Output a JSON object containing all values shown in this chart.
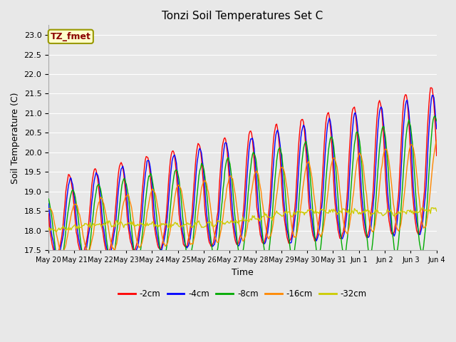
{
  "title": "Tonzi Soil Temperatures Set C",
  "xlabel": "Time",
  "ylabel": "Soil Temperature (C)",
  "ylim": [
    17.5,
    23.25
  ],
  "yticks": [
    17.5,
    18.0,
    18.5,
    19.0,
    19.5,
    20.0,
    20.5,
    21.0,
    21.5,
    22.0,
    22.5,
    23.0
  ],
  "background_color": "#e8e8e8",
  "plot_bg_color": "#e8e8e8",
  "grid_color": "#ffffff",
  "legend_label": "TZ_fmet",
  "legend_text_color": "#8b0000",
  "legend_bg_color": "#ffffcc",
  "legend_border_color": "#999900",
  "series_colors": [
    "#ff0000",
    "#0000ff",
    "#00aa00",
    "#ff8800",
    "#cccc00"
  ],
  "series_labels": [
    "-2cm",
    "-4cm",
    "-8cm",
    "-16cm",
    "-32cm"
  ]
}
